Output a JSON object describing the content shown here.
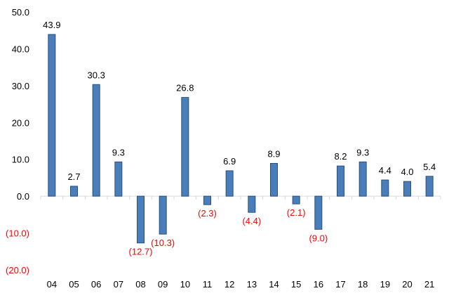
{
  "chart_data": {
    "type": "bar",
    "title": "",
    "xlabel": "",
    "ylabel": "",
    "categories": [
      "04",
      "05",
      "06",
      "07",
      "08",
      "09",
      "10",
      "11",
      "12",
      "13",
      "14",
      "15",
      "16",
      "17",
      "18",
      "19",
      "20",
      "21"
    ],
    "values": [
      43.9,
      2.7,
      30.3,
      9.3,
      -12.7,
      -10.3,
      26.8,
      -2.3,
      6.9,
      -4.4,
      8.9,
      -2.1,
      -9.0,
      8.2,
      9.3,
      4.4,
      4.0,
      5.4
    ],
    "value_labels": [
      "43.9",
      "2.7",
      "30.3",
      "9.3",
      "(12.7)",
      "(10.3)",
      "26.8",
      "(2.3)",
      "6.9",
      "(4.4)",
      "8.9",
      "(2.1)",
      "(9.0)",
      "8.2",
      "9.3",
      "4.4",
      "4.0",
      "5.4"
    ],
    "ylim": [
      -20,
      50
    ],
    "yticks": [
      50,
      40,
      30,
      20,
      10,
      0,
      -10,
      -20
    ],
    "ytick_labels": [
      "50.0",
      "40.0",
      "30.0",
      "20.0",
      "10.0",
      "0.0",
      "(10.0)",
      "(20.0)"
    ],
    "grid": false,
    "legend": "none",
    "bar_color": "#4a7ebb",
    "bar_edge_color": "#2a4f7f",
    "negative_label_color": "#ff0000",
    "positive_label_color": "#000000"
  }
}
